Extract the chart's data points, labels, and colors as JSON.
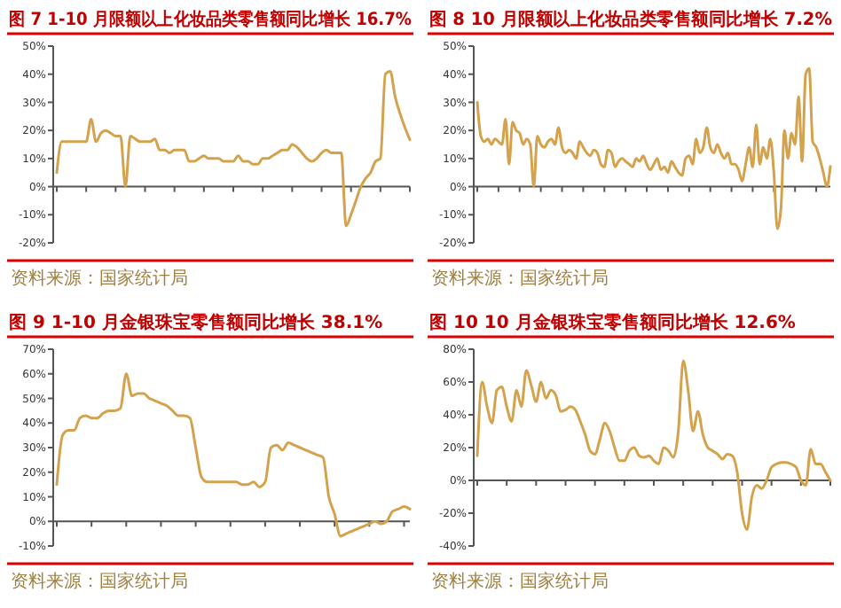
{
  "chart_data": [
    {
      "type": "line",
      "title": "图 7 1-10 月限额以上化妆品类零售额同比增长 16.7%",
      "annotations": [
        "资料来源：国家统计局"
      ],
      "color": "#d4a24c",
      "ylim": [
        -20,
        50
      ],
      "yticks": [
        {
          "value": -20,
          "label": "-20%"
        },
        {
          "value": -10,
          "label": "-10%"
        },
        {
          "value": 0,
          "label": "0%"
        },
        {
          "value": 10,
          "label": "10%"
        },
        {
          "value": 20,
          "label": "20%"
        },
        {
          "value": 30,
          "label": "30%"
        },
        {
          "value": 40,
          "label": "40%"
        },
        {
          "value": 50,
          "label": "50%"
        }
      ],
      "categories": [
        null,
        null,
        null,
        null,
        null,
        null,
        null,
        null,
        null,
        null,
        null,
        null,
        null,
        null,
        null,
        null,
        null,
        null,
        null,
        null,
        null,
        null,
        null,
        null,
        null,
        null,
        null,
        null,
        null,
        null,
        null,
        null,
        null,
        null,
        null,
        null,
        null,
        null,
        null,
        null,
        null,
        null,
        null,
        null,
        null,
        null,
        null,
        null,
        null,
        null,
        null,
        null,
        null,
        null,
        null,
        null,
        null,
        null,
        null,
        null,
        null,
        null,
        null,
        null,
        null,
        null,
        null,
        null,
        null,
        null,
        null,
        null,
        null
      ],
      "values": [
        5,
        16,
        16,
        16,
        16,
        16,
        16,
        24,
        16,
        19,
        20,
        19,
        18,
        18,
        0,
        18,
        17,
        16,
        16,
        16,
        17,
        13,
        13,
        12,
        13,
        13,
        13,
        9,
        9,
        10,
        11,
        10,
        10,
        10,
        9,
        9,
        9,
        11,
        9,
        9,
        8,
        8,
        10,
        10,
        11,
        12,
        13,
        13,
        15,
        14,
        12,
        10,
        9,
        10,
        12,
        13,
        12,
        12,
        12,
        -14,
        -10,
        -5,
        0,
        3,
        5,
        9,
        10,
        40,
        41,
        32,
        26,
        21,
        16.7
      ]
    },
    {
      "type": "line",
      "title": "图 8 10 月限额以上化妆品类零售额同比增长 7.2%",
      "annotations": [
        "资料来源：国家统计局"
      ],
      "color": "#d4a24c",
      "ylim": [
        -20,
        50
      ],
      "yticks": [
        {
          "value": -20,
          "label": "-20%"
        },
        {
          "value": -10,
          "label": "-10%"
        },
        {
          "value": 0,
          "label": "0%"
        },
        {
          "value": 10,
          "label": "10%"
        },
        {
          "value": 20,
          "label": "20%"
        },
        {
          "value": 30,
          "label": "30%"
        },
        {
          "value": 40,
          "label": "40%"
        },
        {
          "value": 50,
          "label": "50%"
        }
      ],
      "categories": [
        null,
        null,
        null,
        null,
        null,
        null,
        null,
        null,
        null,
        null,
        null,
        null,
        null,
        null,
        null,
        null,
        null,
        null,
        null,
        null,
        null,
        null,
        null,
        null,
        null,
        null,
        null,
        null,
        null,
        null,
        null,
        null,
        null,
        null,
        null,
        null,
        null,
        null,
        null,
        null,
        null,
        null,
        null,
        null,
        null,
        null,
        null,
        null,
        null,
        null,
        null,
        null,
        null,
        null,
        null,
        null,
        null,
        null,
        null,
        null,
        null,
        null,
        null,
        null,
        null,
        null,
        null,
        null,
        null,
        null,
        null,
        null,
        null,
        null,
        null,
        null,
        null,
        null,
        null,
        null,
        null,
        null,
        null,
        null,
        null,
        null,
        null,
        null,
        null,
        null,
        null,
        null,
        null,
        null,
        null,
        null,
        null,
        null,
        null,
        null,
        null
      ],
      "values": [
        30,
        18,
        16,
        17,
        15,
        17,
        16,
        15,
        24,
        8,
        23,
        20,
        19,
        15,
        17,
        15,
        0,
        18,
        15,
        14,
        16,
        17,
        15,
        21,
        14,
        12,
        13,
        12,
        10,
        16,
        14,
        12,
        11,
        13,
        12,
        8,
        7,
        13,
        12,
        7,
        9,
        10,
        9,
        8,
        7,
        10,
        9,
        11,
        8,
        6,
        8,
        10,
        6,
        7,
        5,
        9,
        7,
        5,
        4,
        10,
        11,
        8,
        17,
        12,
        14,
        21,
        14,
        12,
        15,
        12,
        10,
        12,
        8,
        8,
        6,
        2,
        8,
        14,
        7,
        22,
        8,
        14,
        10,
        17,
        5,
        -15,
        -8,
        20,
        10,
        19,
        15,
        32,
        9,
        40,
        42,
        16,
        14,
        10,
        5,
        0,
        7.2
      ]
    },
    {
      "type": "line",
      "title": "图 9 1-10 月金银珠宝零售额同比增长 38.1%",
      "annotations": [
        "资料来源：国家统计局"
      ],
      "color": "#d4a24c",
      "ylim": [
        -10,
        70
      ],
      "yticks": [
        {
          "value": -10,
          "label": "-10%"
        },
        {
          "value": 0,
          "label": "0%"
        },
        {
          "value": 10,
          "label": "10%"
        },
        {
          "value": 20,
          "label": "20%"
        },
        {
          "value": 30,
          "label": "30%"
        },
        {
          "value": 40,
          "label": "40%"
        },
        {
          "value": 50,
          "label": "50%"
        },
        {
          "value": 60,
          "label": "60%"
        },
        {
          "value": 70,
          "label": "70%"
        }
      ],
      "categories": [
        null,
        null,
        null,
        null,
        null,
        null,
        null,
        null,
        null,
        null,
        null,
        null,
        null,
        null,
        null,
        null,
        null,
        null,
        null,
        null,
        null,
        null,
        null,
        null,
        null,
        null,
        null,
        null,
        null,
        null,
        null,
        null,
        null,
        null,
        null,
        null,
        null,
        null,
        null,
        null,
        null,
        null,
        null,
        null,
        null,
        null,
        null,
        null,
        null,
        null,
        null,
        null,
        null,
        null,
        null,
        null,
        null,
        null,
        null,
        null,
        null,
        null
      ],
      "values": [
        15,
        35,
        37,
        37,
        42,
        43,
        42,
        42,
        44,
        45,
        45,
        46,
        60,
        51,
        52,
        52,
        50,
        49,
        48,
        47,
        45,
        43,
        43,
        42,
        30,
        18,
        16,
        16,
        16,
        16,
        16,
        16,
        15,
        15,
        16,
        14,
        16,
        30,
        31,
        29,
        32,
        31,
        30,
        29,
        28,
        27,
        26,
        10,
        3,
        -6,
        -5,
        -4,
        -3,
        -2,
        -1,
        0,
        -1,
        0,
        4,
        5,
        6,
        5
      ]
    },
    {
      "type": "line",
      "title": "图 10 10 月金银珠宝零售额同比增长 12.6%",
      "annotations": [
        "资料来源：国家统计局"
      ],
      "color": "#d4a24c",
      "ylim": [
        -40,
        80
      ],
      "yticks": [
        {
          "value": -40,
          "label": "-40%"
        },
        {
          "value": -20,
          "label": "-20%"
        },
        {
          "value": 0,
          "label": "0%"
        },
        {
          "value": 20,
          "label": "20%"
        },
        {
          "value": 40,
          "label": "40%"
        },
        {
          "value": 60,
          "label": "60%"
        },
        {
          "value": 80,
          "label": "80%"
        }
      ],
      "categories": [
        null,
        null,
        null,
        null,
        null,
        null,
        null,
        null,
        null,
        null,
        null,
        null,
        null,
        null,
        null,
        null,
        null,
        null,
        null,
        null,
        null,
        null,
        null,
        null,
        null,
        null,
        null,
        null,
        null,
        null,
        null,
        null,
        null,
        null,
        null,
        null,
        null,
        null,
        null,
        null,
        null,
        null,
        null,
        null,
        null,
        null,
        null,
        null,
        null,
        null,
        null,
        null,
        null,
        null,
        null,
        null,
        null,
        null,
        null,
        null,
        null,
        null,
        null,
        null,
        null,
        null,
        null,
        null,
        null,
        null,
        null,
        null,
        null
      ],
      "values": [
        15,
        60,
        45,
        35,
        55,
        57,
        45,
        36,
        55,
        45,
        67,
        58,
        48,
        60,
        50,
        55,
        52,
        42,
        43,
        45,
        43,
        36,
        28,
        18,
        16,
        25,
        35,
        30,
        20,
        12,
        12,
        18,
        20,
        15,
        14,
        15,
        12,
        10,
        20,
        18,
        14,
        30,
        73,
        55,
        30,
        42,
        28,
        20,
        18,
        16,
        13,
        16,
        15,
        5,
        -20,
        -30,
        -10,
        -3,
        -5,
        0,
        8,
        10,
        11,
        11,
        10,
        8,
        0,
        -3,
        19,
        10,
        10,
        5,
        0
      ]
    }
  ]
}
